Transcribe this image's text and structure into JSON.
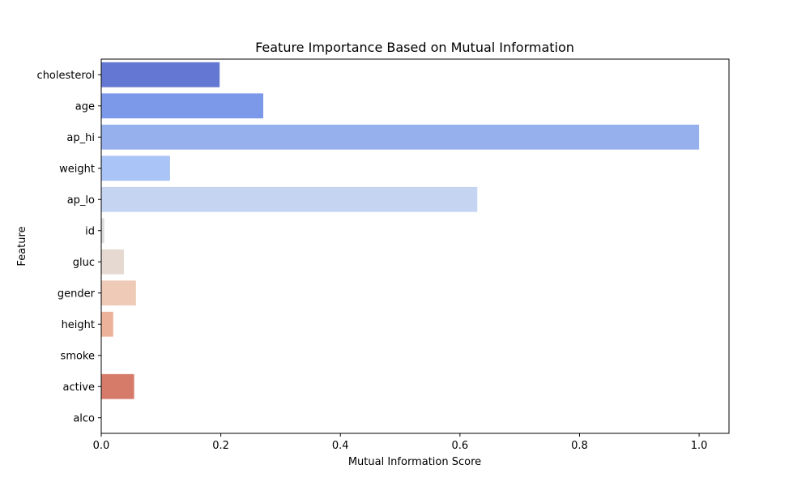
{
  "chart_data": {
    "type": "bar",
    "orientation": "horizontal",
    "title": "Feature Importance Based on Mutual Information",
    "xlabel": "Mutual Information Score",
    "ylabel": "Feature",
    "xlim": [
      0,
      1.05
    ],
    "xticks": [
      "0.0",
      "0.2",
      "0.4",
      "0.6",
      "0.8",
      "1.0"
    ],
    "grid": false,
    "categories": [
      "cholesterol",
      "age",
      "ap_hi",
      "weight",
      "ap_lo",
      "id",
      "gluc",
      "gender",
      "height",
      "smoke",
      "active",
      "alco"
    ],
    "values": [
      0.198,
      0.271,
      1.0,
      0.115,
      0.629,
      0.005,
      0.038,
      0.058,
      0.02,
      0.0,
      0.055,
      0.0
    ],
    "colors": [
      "#6478d3",
      "#7b99e8",
      "#96b0ee",
      "#abc4f7",
      "#c4d4f1",
      "#dcdcdf",
      "#e6d9d2",
      "#eecab7",
      "#edb29a",
      "#e59379",
      "#d67b69",
      "#c14d42"
    ]
  }
}
